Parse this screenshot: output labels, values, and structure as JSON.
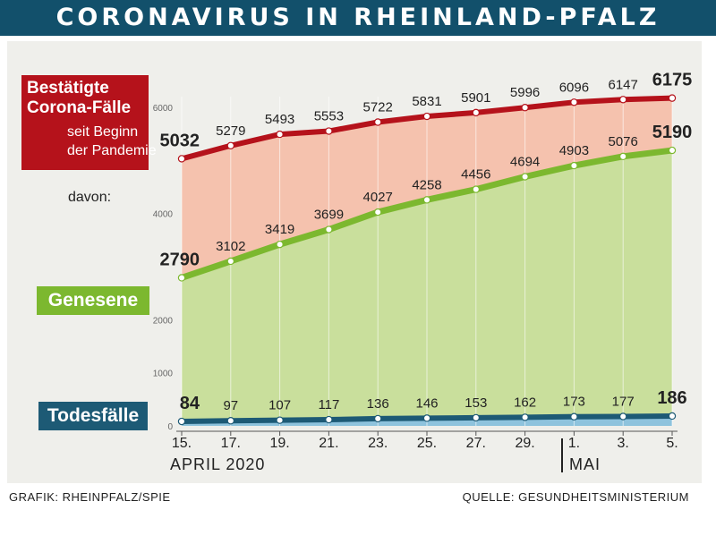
{
  "header": {
    "title": "CORONAVIRUS IN RHEINLAND-PFALZ"
  },
  "labels": {
    "cases_line1": "Bestätigte",
    "cases_line2": "Corona-Fälle",
    "cases_line3": "seit Beginn",
    "cases_line4": "der Pandemie",
    "davon": "davon:",
    "recovered": "Genesene",
    "deaths": "Todesfälle"
  },
  "footer": {
    "source_left": "GRAFIK: RHEINPFALZ/SPIE",
    "source_right": "QUELLE: GESUNDHEITSMINISTERIUM"
  },
  "months": {
    "april": "APRIL 2020",
    "mai": "MAI"
  },
  "colors": {
    "cases": "#b5121b",
    "recovered": "#7cb82f",
    "deaths": "#1d5a75",
    "header": "#12506b"
  },
  "chart_data": {
    "type": "line",
    "x": [
      "15.",
      "17.",
      "19.",
      "21.",
      "23.",
      "25.",
      "27.",
      "29.",
      "1.",
      "3.",
      "5."
    ],
    "ylim": [
      0,
      6400
    ],
    "yticks": [
      0,
      1000,
      2000,
      4000,
      6000
    ],
    "series": [
      {
        "name": "Bestätigte Corona-Fälle",
        "values": [
          5032,
          5279,
          5493,
          5553,
          5722,
          5831,
          5901,
          5996,
          6096,
          6147,
          6175
        ]
      },
      {
        "name": "Genesene",
        "values": [
          2790,
          3102,
          3419,
          3699,
          4027,
          4258,
          4456,
          4694,
          4903,
          5076,
          5190
        ]
      },
      {
        "name": "Todesfälle",
        "values": [
          84,
          97,
          107,
          117,
          136,
          146,
          153,
          162,
          173,
          177,
          186
        ]
      }
    ]
  }
}
